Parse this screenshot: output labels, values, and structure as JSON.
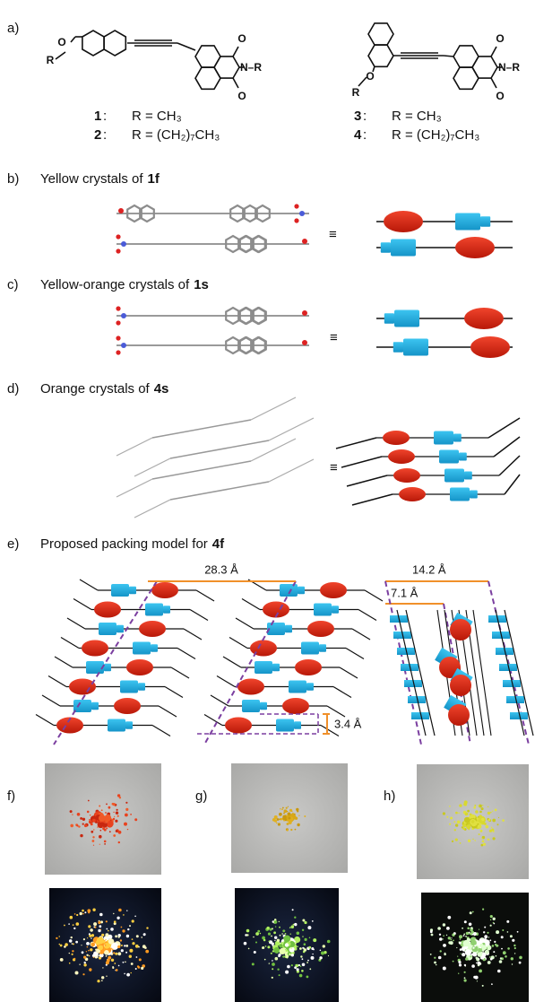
{
  "panel_a": {
    "label": "a)",
    "structures": [
      {
        "atoms": [
          "O",
          "R",
          "O",
          "N–R",
          "O"
        ]
      },
      {
        "atoms": [
          "O",
          "R",
          "O",
          "N–R",
          "O"
        ]
      }
    ],
    "compounds": [
      {
        "number": "1",
        "separator": ":",
        "r": "R = CH₃"
      },
      {
        "number": "2",
        "separator": ":",
        "r": "R = (CH₂)₇CH₃"
      },
      {
        "number": "3",
        "separator": ":",
        "r": "R = CH₃"
      },
      {
        "number": "4",
        "separator": ":",
        "r": "R = (CH₂)₇CH₃"
      }
    ]
  },
  "panels": [
    {
      "label": "b)",
      "text": "Yellow crystals of",
      "compound": "1f",
      "equiv": "≡"
    },
    {
      "label": "c)",
      "text": "Yellow-orange crystals of",
      "compound": "1s",
      "equiv": "≡"
    },
    {
      "label": "d)",
      "text": "Orange crystals of",
      "compound": "4s",
      "equiv": "≡"
    }
  ],
  "panel_e": {
    "label": "e)",
    "text": "Proposed packing model for",
    "compound": "4f",
    "dimensions": [
      "28.3 Å",
      "3.4 Å",
      "14.2 Å",
      "7.1 Å"
    ]
  },
  "photos": {
    "labels": [
      "f)",
      "g)",
      "h)"
    ]
  }
}
